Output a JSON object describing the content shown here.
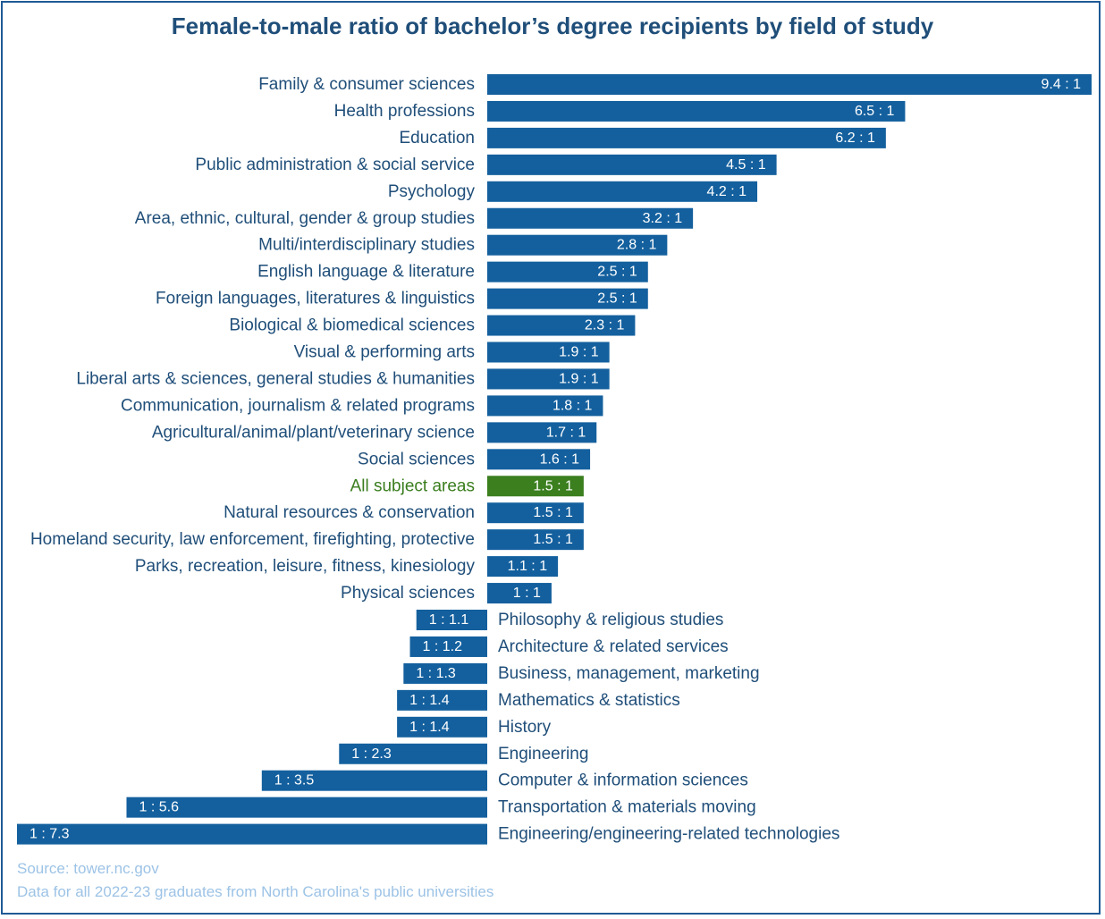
{
  "chart_data": {
    "type": "bar",
    "orientation": "horizontal",
    "title": "Female-to-male ratio of bachelor’s degree recipients by field of study",
    "colors": {
      "default": "#14609e",
      "highlight": "#3b7f1f",
      "highlight_label": "#3a7d1e"
    },
    "bars": [
      {
        "category": "Family & consumer sciences",
        "label": "9.4 : 1",
        "value": 9.4
      },
      {
        "category": "Health professions",
        "label": "6.5 : 1",
        "value": 6.5
      },
      {
        "category": "Education",
        "label": "6.2 : 1",
        "value": 6.2
      },
      {
        "category": "Public administration & social service",
        "label": "4.5 : 1",
        "value": 4.5
      },
      {
        "category": "Psychology",
        "label": "4.2 : 1",
        "value": 4.2
      },
      {
        "category": "Area, ethnic, cultural, gender & group studies",
        "label": "3.2 : 1",
        "value": 3.2
      },
      {
        "category": "Multi/interdisciplinary studies",
        "label": "2.8 : 1",
        "value": 2.8
      },
      {
        "category": "English language & literature",
        "label": "2.5 : 1",
        "value": 2.5
      },
      {
        "category": "Foreign languages, literatures & linguistics",
        "label": "2.5 : 1",
        "value": 2.5
      },
      {
        "category": "Biological & biomedical sciences",
        "label": "2.3 : 1",
        "value": 2.3
      },
      {
        "category": "Visual & performing arts",
        "label": "1.9 : 1",
        "value": 1.9
      },
      {
        "category": "Liberal arts & sciences, general studies & humanities",
        "label": "1.9 : 1",
        "value": 1.9
      },
      {
        "category": "Communication, journalism & related programs",
        "label": "1.8 : 1",
        "value": 1.8
      },
      {
        "category": "Agricultural/animal/plant/veterinary science",
        "label": "1.7 : 1",
        "value": 1.7
      },
      {
        "category": "Social sciences",
        "label": "1.6 : 1",
        "value": 1.6
      },
      {
        "category": "All subject areas",
        "label": "1.5 : 1",
        "value": 1.5,
        "highlight": true
      },
      {
        "category": "Natural resources & conservation",
        "label": "1.5 : 1",
        "value": 1.5
      },
      {
        "category": "Homeland security, law enforcement, firefighting, protective",
        "label": "1.5 : 1",
        "value": 1.5
      },
      {
        "category": "Parks, recreation, leisure, fitness, kinesiology",
        "label": "1.1 : 1",
        "value": 1.1
      },
      {
        "category": "Physical sciences",
        "label": "1 : 1",
        "value": 1.0
      },
      {
        "category": "Philosophy & religious studies",
        "label": "1 : 1.1",
        "value": -1.1
      },
      {
        "category": "Architecture & related services",
        "label": "1 : 1.2",
        "value": -1.2
      },
      {
        "category": "Business, management, marketing",
        "label": "1 : 1.3",
        "value": -1.3
      },
      {
        "category": "Mathematics & statistics",
        "label": "1 : 1.4",
        "value": -1.4
      },
      {
        "category": "History",
        "label": "1 : 1.4",
        "value": -1.4
      },
      {
        "category": "Engineering",
        "label": "1 : 2.3",
        "value": -2.3
      },
      {
        "category": "Computer & information sciences",
        "label": "1 : 3.5",
        "value": -3.5
      },
      {
        "category": "Transportation & materials moving",
        "label": "1 : 5.6",
        "value": -5.6
      },
      {
        "category": "Engineering/engineering-related technologies",
        "label": "1 : 7.3",
        "value": -7.3
      }
    ]
  },
  "source": {
    "line1": "Source: tower.nc.gov",
    "line2": "Data for all 2022-23 graduates from North Carolina's public universities"
  }
}
